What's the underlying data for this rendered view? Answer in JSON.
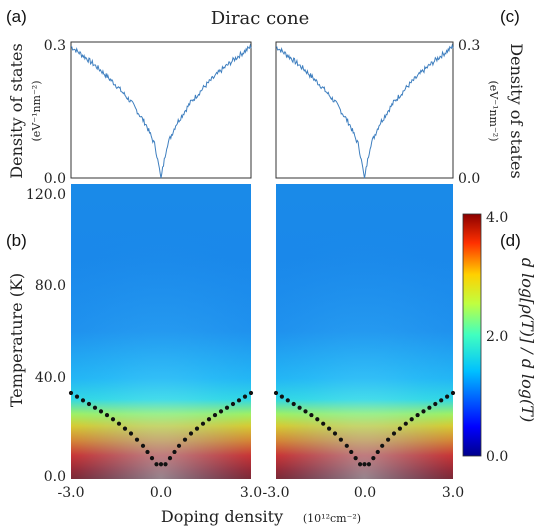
{
  "figure": {
    "title": "Dirac cone",
    "panel_labels": [
      "(a)",
      "(b)",
      "(c)",
      "(d)"
    ]
  },
  "chart_data": [
    {
      "panel": "(a)",
      "type": "line",
      "ylabel": "Density of states",
      "ylabel_unit": "(eV⁻¹nm⁻²)",
      "ytick_labels": [
        "0.3",
        "0.0"
      ],
      "ylim": [
        0,
        0.3
      ],
      "xlim": [
        -3.0,
        3.0
      ],
      "shape": "V-shaped density of states, linear in |doping|, minimum at 0.0",
      "series": [
        {
          "color": "#3f7fbf",
          "x": [
            -3.0,
            -2.5,
            -2.0,
            -1.5,
            -1.0,
            -0.5,
            -0.2,
            0.0,
            0.2,
            0.5,
            1.0,
            1.5,
            2.0,
            2.5,
            3.0
          ],
          "values": [
            0.29,
            0.265,
            0.237,
            0.205,
            0.168,
            0.118,
            0.072,
            0.0,
            0.072,
            0.118,
            0.168,
            0.205,
            0.237,
            0.265,
            0.29
          ]
        }
      ]
    },
    {
      "panel": "(c)",
      "type": "line",
      "ylabel": "Density of states",
      "ylabel_unit": "(eV⁻¹nm⁻²)",
      "ytick_labels": [
        "0.3",
        "0.0"
      ],
      "ylim": [
        0,
        0.3
      ],
      "xlim": [
        -3.0,
        3.0
      ],
      "series": [
        {
          "color": "#3f7fbf",
          "x": [
            -3.0,
            -2.5,
            -2.0,
            -1.5,
            -1.0,
            -0.5,
            -0.2,
            0.0,
            0.2,
            0.5,
            1.0,
            1.5,
            2.0,
            2.5,
            3.0
          ],
          "values": [
            0.29,
            0.265,
            0.237,
            0.205,
            0.168,
            0.118,
            0.072,
            0.0,
            0.072,
            0.118,
            0.168,
            0.205,
            0.237,
            0.265,
            0.29
          ]
        }
      ]
    },
    {
      "panel": "(b)",
      "type": "heatmap",
      "xlabel": "Doping density",
      "xlabel_unit": "(10¹²cm⁻²)",
      "ylabel": "Temperature (K)",
      "xlim": [
        -3.0,
        3.0
      ],
      "ylim": [
        0,
        120
      ],
      "xtick_labels": [
        "-3.0",
        "0.0",
        "3.0"
      ],
      "ytick_labels": [
        "120.0",
        "80.0",
        "40.0",
        "0.0"
      ],
      "overlay_points": {
        "x": [
          -3.0,
          -2.8,
          -2.6,
          -2.4,
          -2.2,
          -2.0,
          -1.8,
          -1.6,
          -1.4,
          -1.2,
          -1.0,
          -0.8,
          -0.6,
          -0.45,
          -0.3,
          -0.15,
          0.0,
          0.15,
          0.3,
          0.45,
          0.6,
          0.8,
          1.0,
          1.2,
          1.4,
          1.6,
          1.8,
          2.0,
          2.2,
          2.4,
          2.6,
          2.8,
          3.0
        ],
        "y": [
          35,
          33.5,
          32,
          30.5,
          29,
          27.5,
          26,
          24.3,
          22.5,
          20.5,
          18.5,
          16,
          13.5,
          11,
          8.5,
          6,
          6,
          6,
          8.5,
          11,
          13.5,
          16,
          18.5,
          20.5,
          22.5,
          24.3,
          26,
          27.5,
          29,
          30.5,
          32,
          33.5,
          35
        ]
      }
    },
    {
      "panel": "(d)",
      "type": "heatmap",
      "xlabel": "Doping density",
      "xlim": [
        -3.0,
        3.0
      ],
      "ylim": [
        0,
        120
      ],
      "xtick_labels": [
        "-3.0",
        "0.0",
        "3.0"
      ],
      "colorbar": {
        "label": "d log[ρ(T)] / d log(T)",
        "range": [
          0,
          4.0
        ],
        "tick_labels": [
          "4.0",
          "2.0",
          "0.0"
        ],
        "colormap": "jet"
      },
      "overlay_points": {
        "x": [
          -3.0,
          -2.8,
          -2.6,
          -2.4,
          -2.2,
          -2.0,
          -1.8,
          -1.6,
          -1.4,
          -1.2,
          -1.0,
          -0.8,
          -0.6,
          -0.45,
          -0.3,
          -0.15,
          0.0,
          0.15,
          0.3,
          0.45,
          0.6,
          0.8,
          1.0,
          1.2,
          1.4,
          1.6,
          1.8,
          2.0,
          2.2,
          2.4,
          2.6,
          2.8,
          3.0
        ],
        "y": [
          35,
          33.5,
          32,
          30.5,
          29,
          27.5,
          26,
          24.3,
          22.5,
          20.5,
          18.5,
          16,
          13.5,
          11,
          8.5,
          6,
          6,
          6,
          8.5,
          11,
          13.5,
          16,
          18.5,
          20.5,
          22.5,
          24.3,
          26,
          27.5,
          29,
          30.5,
          32,
          33.5,
          35
        ]
      }
    }
  ]
}
